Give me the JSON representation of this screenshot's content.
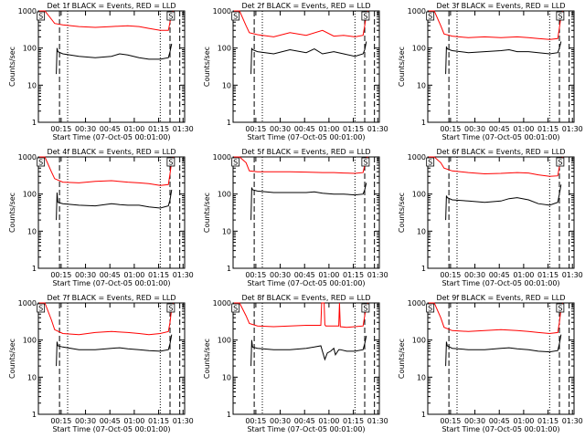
{
  "chart_data": [
    {
      "type": "line",
      "title": "Det 1f BLACK = Events, RED = LLD",
      "xlabel": "Start Time (07-Oct-05 00:01:00)",
      "ylabel": "Counts/sec",
      "ylog": true,
      "ylim": [
        1,
        1000
      ],
      "x_ticks": [
        "00:15",
        "00:30",
        "00:45",
        "01:00",
        "01:15",
        "01:30"
      ],
      "y_ticks": [
        "1",
        "10",
        "100",
        "1000"
      ],
      "markers": [
        "S",
        "S"
      ],
      "series": [
        {
          "name": "LLD",
          "color": "#ff0000",
          "x": [
            0.5,
            4,
            8,
            10,
            15,
            25,
            35,
            45,
            55,
            62,
            68,
            75,
            80,
            81,
            82,
            83
          ],
          "y": [
            1000,
            1000,
            600,
            460,
            420,
            380,
            360,
            380,
            400,
            380,
            340,
            300,
            300,
            500,
            900,
            1000
          ]
        },
        {
          "name": "Events",
          "color": "#000000",
          "x": [
            11,
            11.5,
            12,
            15,
            25,
            35,
            45,
            50,
            55,
            62,
            68,
            75,
            80,
            81,
            82
          ],
          "y": [
            20,
            100,
            80,
            70,
            60,
            55,
            60,
            70,
            65,
            55,
            50,
            50,
            55,
            80,
            130
          ]
        }
      ]
    },
    {
      "type": "line",
      "title": "Det 2f BLACK = Events, RED = LLD",
      "xlabel": "Start Time (07-Oct-05 00:01:00)",
      "ylabel": "Counts/sec",
      "ylog": true,
      "ylim": [
        1,
        1000
      ],
      "x_ticks": [
        "00:15",
        "00:30",
        "00:45",
        "01:00",
        "01:15",
        "01:30"
      ],
      "y_ticks": [
        "1",
        "10",
        "100",
        "1000"
      ],
      "markers": [
        "S",
        "S"
      ],
      "series": [
        {
          "name": "LLD",
          "color": "#ff0000",
          "x": [
            0.5,
            4,
            8,
            10,
            15,
            25,
            35,
            45,
            55,
            62,
            68,
            75,
            80,
            81,
            82,
            83
          ],
          "y": [
            1000,
            1000,
            400,
            260,
            230,
            200,
            260,
            220,
            300,
            210,
            220,
            200,
            220,
            400,
            800,
            1000
          ]
        },
        {
          "name": "Events",
          "color": "#000000",
          "x": [
            11,
            11.5,
            12,
            15,
            25,
            35,
            45,
            50,
            55,
            62,
            68,
            75,
            80,
            81,
            82
          ],
          "y": [
            20,
            100,
            90,
            80,
            70,
            90,
            75,
            95,
            70,
            80,
            70,
            60,
            70,
            90,
            150
          ]
        }
      ]
    },
    {
      "type": "line",
      "title": "Det 3f BLACK = Events, RED = LLD",
      "xlabel": "Start Time (07-Oct-05 00:01:00)",
      "ylabel": "Counts/sec",
      "ylog": true,
      "ylim": [
        1,
        1000
      ],
      "x_ticks": [
        "00:15",
        "00:30",
        "00:45",
        "01:00",
        "01:15",
        "01:30"
      ],
      "y_ticks": [
        "1",
        "10",
        "100",
        "1000"
      ],
      "markers": [
        "S",
        "S"
      ],
      "series": [
        {
          "name": "LLD",
          "color": "#ff0000",
          "x": [
            0.5,
            4,
            8,
            10,
            15,
            25,
            35,
            45,
            55,
            62,
            68,
            75,
            80,
            81,
            82,
            83
          ],
          "y": [
            1000,
            1000,
            400,
            240,
            210,
            190,
            200,
            190,
            200,
            190,
            180,
            170,
            180,
            350,
            750,
            1000
          ]
        },
        {
          "name": "Events",
          "color": "#000000",
          "x": [
            11,
            11.5,
            12,
            15,
            25,
            35,
            45,
            50,
            55,
            62,
            68,
            75,
            80,
            81,
            82
          ],
          "y": [
            20,
            110,
            95,
            85,
            75,
            80,
            85,
            90,
            80,
            80,
            75,
            70,
            75,
            100,
            150
          ]
        }
      ]
    },
    {
      "type": "line",
      "title": "Det 4f BLACK = Events, RED = LLD",
      "xlabel": "Start Time (07-Oct-05 00:01:00)",
      "ylabel": "Counts/sec",
      "ylog": true,
      "ylim": [
        1,
        1000
      ],
      "x_ticks": [
        "00:15",
        "00:30",
        "00:45",
        "01:00",
        "01:15",
        "01:30"
      ],
      "y_ticks": [
        "1",
        "10",
        "100",
        "1000"
      ],
      "markers": [
        "S",
        "S"
      ],
      "series": [
        {
          "name": "LLD",
          "color": "#ff0000",
          "x": [
            0.5,
            4,
            8,
            10,
            15,
            25,
            35,
            45,
            55,
            62,
            68,
            75,
            80,
            81,
            82,
            83
          ],
          "y": [
            1000,
            1000,
            400,
            260,
            210,
            200,
            220,
            230,
            210,
            200,
            190,
            170,
            180,
            350,
            750,
            1000
          ]
        },
        {
          "name": "Events",
          "color": "#000000",
          "x": [
            11,
            11.5,
            12,
            15,
            25,
            35,
            45,
            50,
            55,
            62,
            68,
            75,
            80,
            81,
            82
          ],
          "y": [
            20,
            110,
            60,
            55,
            50,
            48,
            55,
            52,
            50,
            50,
            45,
            42,
            48,
            70,
            130
          ]
        }
      ]
    },
    {
      "type": "line",
      "title": "Det 5f BLACK = Events, RED = LLD",
      "xlabel": "Start Time (07-Oct-05 00:01:00)",
      "ylabel": "Counts/sec",
      "ylog": true,
      "ylim": [
        1,
        1000
      ],
      "x_ticks": [
        "00:15",
        "00:30",
        "00:45",
        "01:00",
        "01:15",
        "01:30"
      ],
      "y_ticks": [
        "1",
        "10",
        "100",
        "1000"
      ],
      "markers": [
        "S",
        "S"
      ],
      "series": [
        {
          "name": "LLD",
          "color": "#ff0000",
          "x": [
            0.5,
            4,
            8,
            10,
            15,
            25,
            35,
            45,
            55,
            62,
            68,
            75,
            80,
            81,
            82,
            83
          ],
          "y": [
            1000,
            1000,
            700,
            420,
            400,
            400,
            400,
            390,
            380,
            380,
            370,
            360,
            380,
            600,
            950,
            1000
          ]
        },
        {
          "name": "Events",
          "color": "#000000",
          "x": [
            11,
            11.5,
            12,
            15,
            25,
            35,
            45,
            50,
            55,
            62,
            68,
            75,
            80,
            81,
            82
          ],
          "y": [
            20,
            150,
            130,
            120,
            110,
            110,
            110,
            115,
            105,
            100,
            100,
            95,
            100,
            130,
            200
          ]
        }
      ]
    },
    {
      "type": "line",
      "title": "Det 6f BLACK = Events, RED = LLD",
      "xlabel": "Start Time (07-Oct-05 00:01:00)",
      "ylabel": "Counts/sec",
      "ylog": true,
      "ylim": [
        1,
        1000
      ],
      "x_ticks": [
        "00:15",
        "00:30",
        "00:45",
        "01:00",
        "01:15",
        "01:30"
      ],
      "y_ticks": [
        "1",
        "10",
        "100",
        "1000"
      ],
      "markers": [
        "S",
        "S"
      ],
      "series": [
        {
          "name": "LLD",
          "color": "#ff0000",
          "x": [
            0.5,
            4,
            8,
            10,
            15,
            25,
            35,
            45,
            55,
            62,
            68,
            75,
            80,
            81,
            82,
            83
          ],
          "y": [
            1000,
            1000,
            700,
            500,
            420,
            380,
            350,
            360,
            380,
            370,
            330,
            300,
            310,
            550,
            900,
            1000
          ]
        },
        {
          "name": "Events",
          "color": "#000000",
          "x": [
            11,
            11.5,
            12,
            15,
            25,
            35,
            45,
            50,
            55,
            62,
            68,
            75,
            80,
            81,
            82
          ],
          "y": [
            20,
            90,
            80,
            70,
            65,
            60,
            65,
            75,
            80,
            70,
            55,
            50,
            60,
            100,
            180
          ]
        }
      ]
    },
    {
      "type": "line",
      "title": "Det 7f BLACK = Events, RED = LLD",
      "xlabel": "Start Time (07-Oct-05 00:01:00)",
      "ylabel": "Counts/sec",
      "ylog": true,
      "ylim": [
        1,
        1000
      ],
      "x_ticks": [
        "00:15",
        "00:30",
        "00:45",
        "01:00",
        "01:15",
        "01:30"
      ],
      "y_ticks": [
        "1",
        "10",
        "100",
        "1000"
      ],
      "markers": [
        "S",
        "S"
      ],
      "series": [
        {
          "name": "LLD",
          "color": "#ff0000",
          "x": [
            0.5,
            4,
            8,
            10,
            15,
            25,
            35,
            45,
            55,
            62,
            68,
            75,
            80,
            81,
            82,
            83
          ],
          "y": [
            1000,
            1000,
            350,
            190,
            150,
            140,
            160,
            170,
            160,
            150,
            140,
            150,
            170,
            300,
            700,
            1000
          ]
        },
        {
          "name": "Events",
          "color": "#000000",
          "x": [
            11,
            11.5,
            12,
            15,
            25,
            35,
            45,
            50,
            55,
            62,
            68,
            75,
            80,
            81,
            82
          ],
          "y": [
            20,
            90,
            70,
            65,
            55,
            55,
            60,
            62,
            58,
            55,
            52,
            50,
            55,
            80,
            140
          ]
        }
      ]
    },
    {
      "type": "line",
      "title": "Det 8f BLACK = Events, RED = LLD",
      "xlabel": "Start Time (07-Oct-05 00:01:00)",
      "ylabel": "Counts/sec",
      "ylog": true,
      "ylim": [
        1,
        1000
      ],
      "x_ticks": [
        "00:15",
        "00:30",
        "00:45",
        "01:00",
        "01:15",
        "01:30"
      ],
      "y_ticks": [
        "1",
        "10",
        "100",
        "1000"
      ],
      "markers": [
        "S",
        "S"
      ],
      "series": [
        {
          "name": "LLD",
          "color": "#ff0000",
          "x": [
            0.5,
            4,
            8,
            10,
            15,
            25,
            35,
            45,
            54,
            54.5,
            56,
            56.5,
            57,
            60,
            65,
            65.5,
            66,
            70,
            75,
            80,
            81,
            82,
            83
          ],
          "y": [
            1000,
            1000,
            450,
            280,
            240,
            230,
            240,
            250,
            250,
            1000,
            1000,
            260,
            240,
            240,
            240,
            1000,
            230,
            220,
            230,
            240,
            450,
            850,
            1000
          ]
        },
        {
          "name": "Events",
          "color": "#000000",
          "x": [
            11,
            11.5,
            12,
            15,
            25,
            35,
            45,
            50,
            54,
            56.5,
            58,
            60,
            62,
            63,
            65,
            66,
            70,
            75,
            80,
            81,
            82
          ],
          "y": [
            20,
            100,
            65,
            60,
            55,
            55,
            60,
            65,
            70,
            30,
            45,
            50,
            60,
            40,
            55,
            55,
            50,
            50,
            55,
            80,
            130
          ]
        }
      ]
    },
    {
      "type": "line",
      "title": "Det 9f BLACK = Events, RED = LLD",
      "xlabel": "Start Time (07-Oct-05 00:01:00)",
      "ylabel": "Counts/sec",
      "ylog": true,
      "ylim": [
        1,
        1000
      ],
      "x_ticks": [
        "00:15",
        "00:30",
        "00:45",
        "01:00",
        "01:15",
        "01:30"
      ],
      "y_ticks": [
        "1",
        "10",
        "100",
        "1000"
      ],
      "markers": [
        "S",
        "S"
      ],
      "series": [
        {
          "name": "LLD",
          "color": "#ff0000",
          "x": [
            0.5,
            4,
            8,
            10,
            15,
            25,
            35,
            45,
            55,
            62,
            68,
            75,
            80,
            81,
            82,
            83
          ],
          "y": [
            1000,
            1000,
            400,
            220,
            180,
            170,
            180,
            190,
            180,
            170,
            160,
            150,
            160,
            300,
            700,
            1000
          ]
        },
        {
          "name": "Events",
          "color": "#000000",
          "x": [
            11,
            11.5,
            12,
            15,
            25,
            35,
            45,
            50,
            55,
            62,
            68,
            75,
            80,
            81,
            82
          ],
          "y": [
            20,
            90,
            70,
            60,
            55,
            55,
            60,
            62,
            58,
            55,
            50,
            48,
            52,
            80,
            140
          ]
        }
      ]
    }
  ]
}
